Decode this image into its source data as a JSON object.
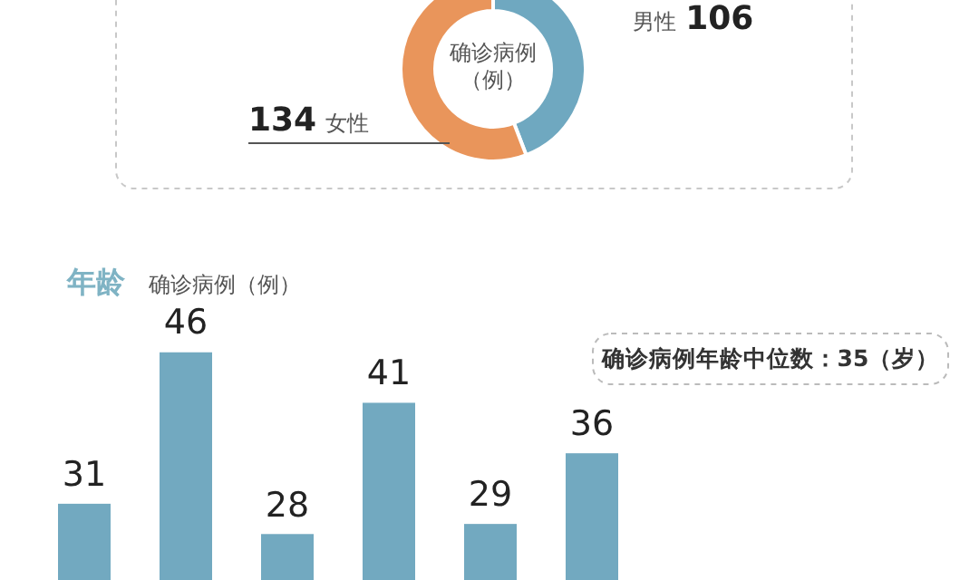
{
  "chart_data": [
    {
      "type": "donut",
      "categories": [
        "男性",
        "女性"
      ],
      "values": [
        106,
        134
      ],
      "colors": [
        "#6fa8c0",
        "#e9955b"
      ],
      "data_labels": true,
      "annotations": [
        "确诊病例（例）"
      ]
    },
    {
      "type": "bar",
      "title": "年龄",
      "ylabel": "确诊病例（例）",
      "categories": [
        null,
        null,
        null,
        null,
        null,
        null
      ],
      "values": [
        31,
        46,
        28,
        41,
        29,
        36
      ],
      "color": "#72a9c0",
      "data_labels": true,
      "annotations": [
        "确诊病例年龄中位数：35（岁）"
      ]
    }
  ]
}
